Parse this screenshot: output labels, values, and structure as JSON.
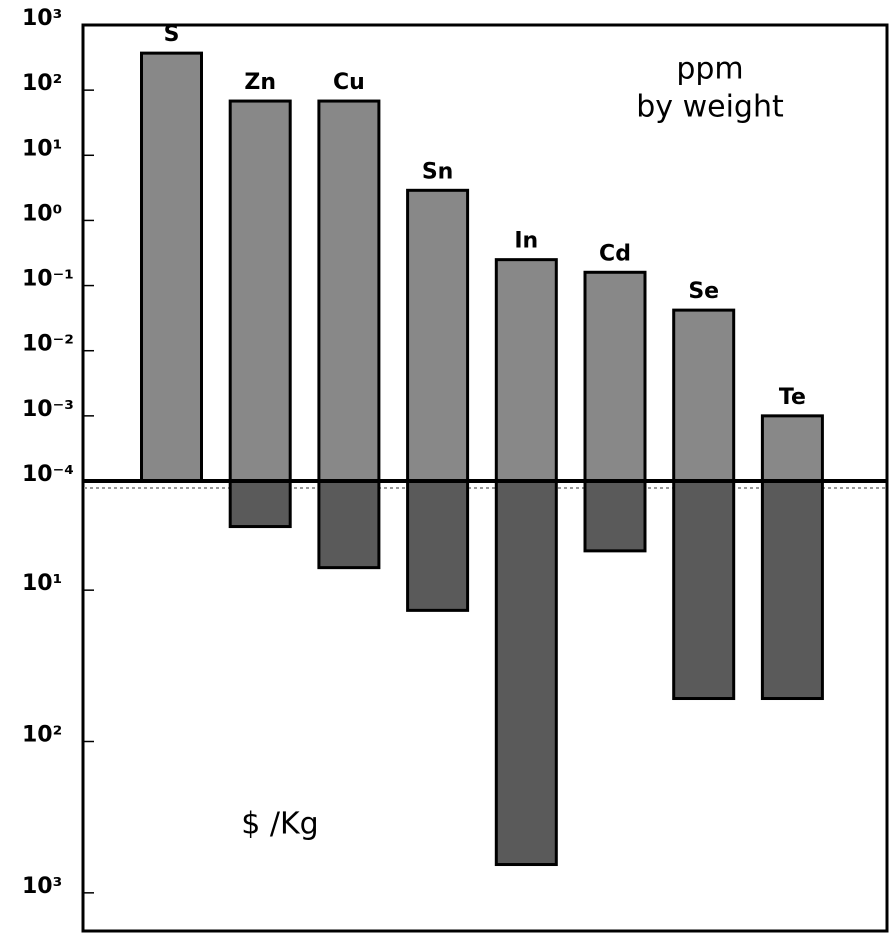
{
  "chart_data": {
    "type": "bar",
    "log_scale": true,
    "categories": [
      "S",
      "Zn",
      "Cu",
      "Sn",
      "In",
      "Cd",
      "Se",
      "Te"
    ],
    "series": [
      {
        "color": "#888888",
        "values": [
          370,
          68,
          68,
          2.9,
          0.25,
          0.16,
          0.042,
          0.001
        ]
      },
      {
        "color": "#5a5a5a",
        "axis": "y2",
        "values": [
          null,
          3.8,
          7.1,
          13.6,
          650,
          5.5,
          52,
          52
        ]
      }
    ],
    "ylim": [
      0.0001,
      1000
    ],
    "yticks": [
      {
        "value": 1000,
        "label": "10³"
      },
      {
        "value": 100,
        "label": "10²"
      },
      {
        "value": 10,
        "label": "10¹"
      },
      {
        "value": 1,
        "label": "10⁰"
      },
      {
        "value": 0.1,
        "label": "10⁻¹"
      },
      {
        "value": 0.01,
        "label": "10⁻²"
      },
      {
        "value": 0.001,
        "label": "10⁻³"
      },
      {
        "value": 0.0001,
        "label": "10⁻⁴"
      }
    ],
    "y2lim": [
      1.9,
      1760
    ],
    "y2ticks": [
      {
        "value": 10,
        "label": "10¹"
      },
      {
        "value": 100,
        "label": "10²"
      },
      {
        "value": 1000,
        "label": "10³"
      }
    ],
    "annotations": [
      "ppm",
      "by weight",
      "$ /Kg"
    ]
  }
}
